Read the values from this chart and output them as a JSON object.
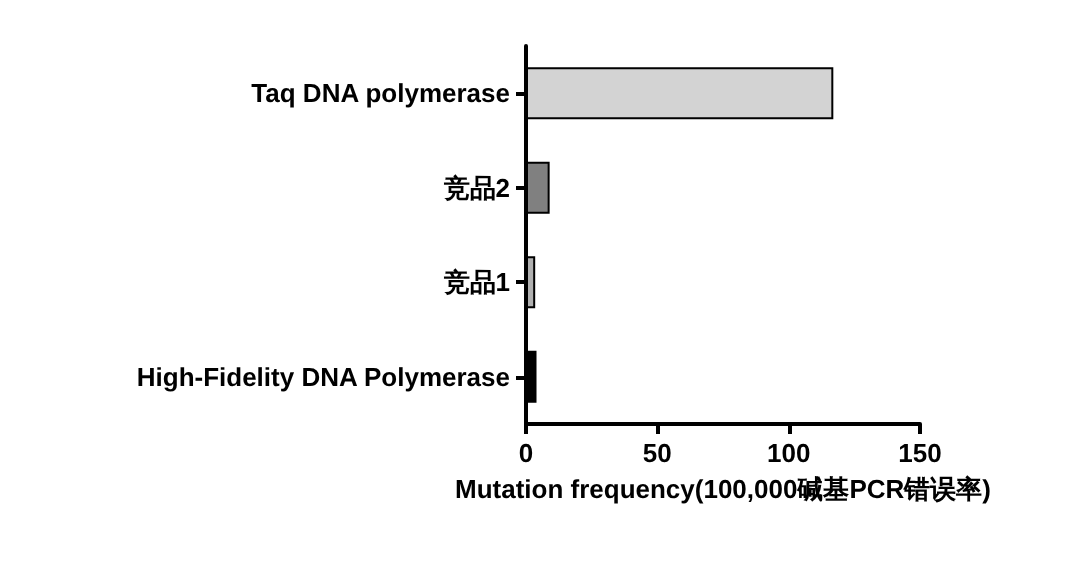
{
  "chart_data": {
    "type": "bar",
    "orientation": "horizontal",
    "categories": [
      "Taq DNA polymerase",
      "竞品2",
      "竞品1",
      "High-Fidelity DNA Polymerase"
    ],
    "values": [
      117,
      9,
      3.5,
      4
    ],
    "colors": [
      "#d3d3d3",
      "#808080",
      "#b0b0b0",
      "#000000"
    ],
    "xlabel": "Mutation frequency(100,000碱基PCR错误率)",
    "xlim": [
      0,
      150
    ],
    "xticks": [
      0,
      50,
      100,
      150
    ],
    "grid": false
  }
}
